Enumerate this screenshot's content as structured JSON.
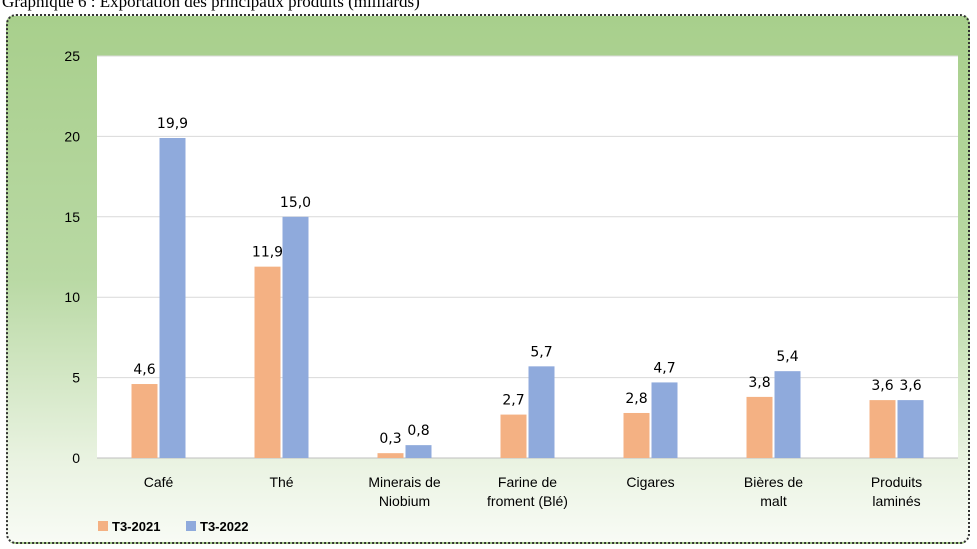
{
  "caption": "Graphique 6 : Exportation des principaux produits (milliards)",
  "chart_data": {
    "type": "bar",
    "title": "",
    "xlabel": "",
    "ylabel": "",
    "ylim": [
      0,
      25
    ],
    "yticks": [
      "0",
      "5",
      "10",
      "15",
      "20",
      "25"
    ],
    "grid": true,
    "legend_position": "bottom-left",
    "categories": [
      [
        "Café"
      ],
      [
        "Thé"
      ],
      [
        "Minerais de",
        "Niobium"
      ],
      [
        "Farine de",
        "froment (Blé)"
      ],
      [
        "Cigares"
      ],
      [
        "Bières de",
        "malt"
      ],
      [
        "Produits",
        "laminés"
      ]
    ],
    "series": [
      {
        "name": "T3-2021",
        "color": "#f4b183",
        "values": [
          4.6,
          11.9,
          0.3,
          2.7,
          2.8,
          3.8,
          3.6
        ],
        "labels": [
          "4,6",
          "11,9",
          "0,3",
          "2,7",
          "2,8",
          "3,8",
          "3,6"
        ]
      },
      {
        "name": "T3-2022",
        "color": "#8faadc",
        "values": [
          19.9,
          15.0,
          0.8,
          5.7,
          4.7,
          5.4,
          3.6
        ],
        "labels": [
          "19,9",
          "15,0",
          "0,8",
          "5,7",
          "4,7",
          "5,4",
          "3,6"
        ]
      }
    ]
  }
}
